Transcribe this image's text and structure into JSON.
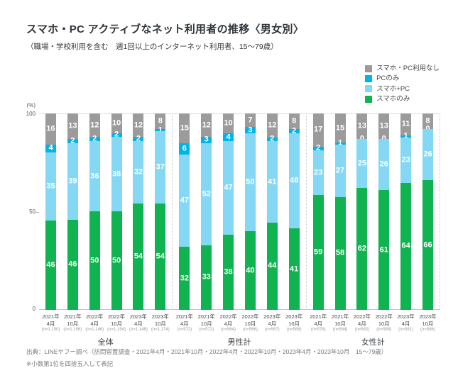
{
  "page": {
    "title": "スマホ・PC アクティブなネット利用者の推移〈男女別〉",
    "subtitle": "（職場・学校利用を含む　週1回以上のインターネット利用者、15〜79歳）",
    "footer_source": "出典：LINEヤフー調べ（訪問留置調査・2021年4月・2021年10月・2022年4月・2022年10月・2023年4月・2023年10月　15〜79歳）",
    "footer_note": "※小数第1位を四捨五入して表記"
  },
  "chart_data": {
    "type": "bar",
    "stacked": true,
    "unit": "%",
    "ylim": [
      0,
      100
    ],
    "grid": "top-and-baseline",
    "legend_position": "top-right",
    "y_axis": {
      "unit_label": "(%)",
      "ticks": [
        "100",
        "50",
        "0"
      ]
    },
    "legend": [
      {
        "key": "none",
        "label": "スマホ・PC利用なし",
        "color": "#9b9b9b"
      },
      {
        "key": "pc_only",
        "label": "PCのみ",
        "color": "#00b5e6"
      },
      {
        "key": "smart_pc",
        "label": "スマホ+PC",
        "color": "#85d8f3"
      },
      {
        "key": "smart_only",
        "label": "スマホのみ",
        "color": "#0fb350"
      }
    ],
    "series_keys_top_to_bottom": [
      "none",
      "pc_only",
      "smart_pc",
      "smart_only"
    ],
    "groups": [
      {
        "label": "全体",
        "bars": [
          {
            "year": "2021年",
            "month": "4月",
            "n": "(n=1,150)",
            "none": 16,
            "pc_only": 4,
            "smart_pc": 35,
            "smart_only": 46
          },
          {
            "year": "2021年",
            "month": "10月",
            "n": "(n=1,156)",
            "none": 13,
            "pc_only": 2,
            "smart_pc": 39,
            "smart_only": 46
          },
          {
            "year": "2022年",
            "month": "4月",
            "n": "(n=1,146)",
            "none": 12,
            "pc_only": 2,
            "smart_pc": 36,
            "smart_only": 50
          },
          {
            "year": "2022年",
            "month": "10月",
            "n": "(n=1,154)",
            "none": 10,
            "pc_only": 2,
            "smart_pc": 38,
            "smart_only": 50
          },
          {
            "year": "2023年",
            "month": "4月",
            "n": "(n=1,148)",
            "none": 12,
            "pc_only": 2,
            "smart_pc": 32,
            "smart_only": 54
          },
          {
            "year": "2023年",
            "month": "10月",
            "n": "(n=1,174)",
            "none": 8,
            "pc_only": 1,
            "smart_pc": 37,
            "smart_only": 54
          }
        ]
      },
      {
        "label": "男性計",
        "bars": [
          {
            "year": "2021年",
            "month": "4月",
            "n": "(n=572)",
            "none": 15,
            "pc_only": 6,
            "smart_pc": 47,
            "smart_only": 32
          },
          {
            "year": "2021年",
            "month": "10月",
            "n": "(n=572)",
            "none": 12,
            "pc_only": 3,
            "smart_pc": 52,
            "smart_only": 33
          },
          {
            "year": "2022年",
            "month": "4月",
            "n": "(n=564)",
            "none": 10,
            "pc_only": 4,
            "smart_pc": 47,
            "smart_only": 38
          },
          {
            "year": "2022年",
            "month": "10月",
            "n": "(n=566)",
            "none": 7,
            "pc_only": 3,
            "smart_pc": 50,
            "smart_only": 40
          },
          {
            "year": "2023年",
            "month": "4月",
            "n": "(n=567)",
            "none": 12,
            "pc_only": 2,
            "smart_pc": 41,
            "smart_only": 44
          },
          {
            "year": "2023年",
            "month": "10月",
            "n": "(n=588)",
            "none": 8,
            "pc_only": 2,
            "smart_pc": 48,
            "smart_only": 41
          }
        ]
      },
      {
        "label": "女性計",
        "bars": [
          {
            "year": "2021年",
            "month": "4月",
            "n": "(n=578)",
            "none": 17,
            "pc_only": 2,
            "smart_pc": 23,
            "smart_only": 59
          },
          {
            "year": "2021年",
            "month": "10月",
            "n": "(n=584)",
            "none": 15,
            "pc_only": 1,
            "smart_pc": 27,
            "smart_only": 58
          },
          {
            "year": "2022年",
            "month": "4月",
            "n": "(n=582)",
            "none": 13,
            "pc_only": 0,
            "smart_pc": 25,
            "smart_only": 62
          },
          {
            "year": "2022年",
            "month": "10月",
            "n": "(n=588)",
            "none": 13,
            "pc_only": 0,
            "smart_pc": 26,
            "smart_only": 61
          },
          {
            "year": "2023年",
            "month": "4月",
            "n": "(n=581)",
            "none": 11,
            "pc_only": 1,
            "smart_pc": 23,
            "smart_only": 64
          },
          {
            "year": "2023年",
            "month": "10月",
            "n": "(n=586)",
            "none": 8,
            "pc_only": 0,
            "smart_pc": 26,
            "smart_only": 66
          }
        ]
      }
    ]
  }
}
